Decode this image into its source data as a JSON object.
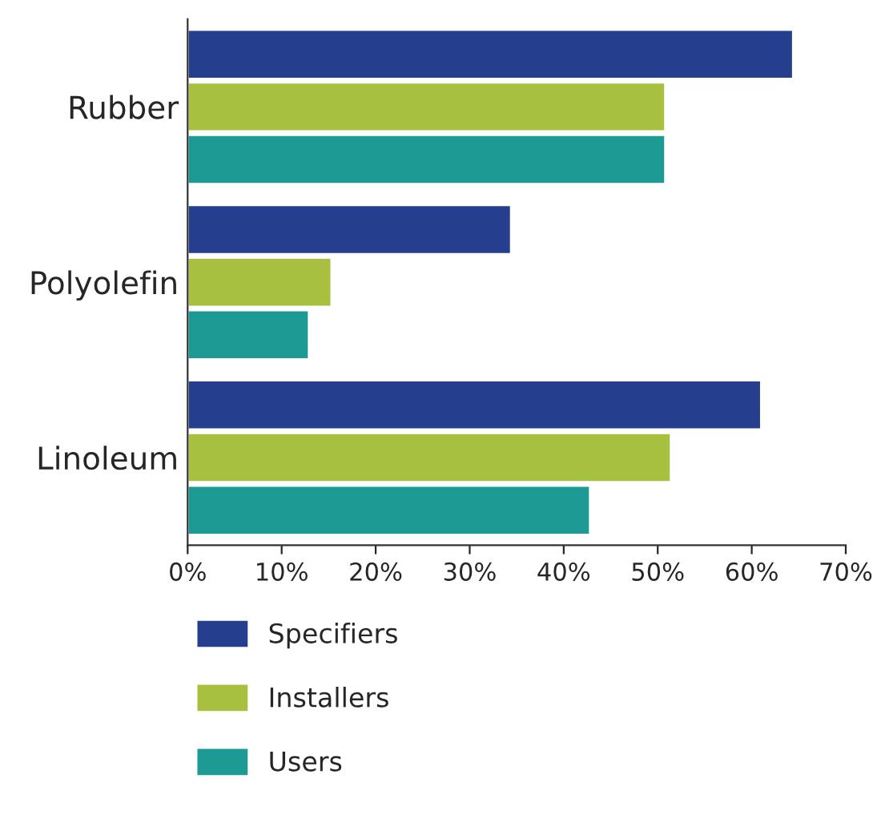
{
  "chart_data": {
    "type": "bar",
    "orientation": "horizontal",
    "categories": [
      "Rubber",
      "Polyolefin",
      "Linoleum"
    ],
    "series": [
      {
        "name": "Specifiers",
        "color": "#253f8e",
        "values": [
          64.4,
          34.4,
          61
        ]
      },
      {
        "name": "Installers",
        "color": "#a8c03f",
        "values": [
          50.8,
          15.3,
          51.4
        ]
      },
      {
        "name": "Users",
        "color": "#1e9a94",
        "values": [
          50.8,
          12.9,
          42.8
        ]
      }
    ],
    "xlim": [
      0,
      70
    ],
    "xticks": [
      {
        "value": 0,
        "label": "0%"
      },
      {
        "value": 10,
        "label": "10%"
      },
      {
        "value": 20,
        "label": "20%"
      },
      {
        "value": 30,
        "label": "30%"
      },
      {
        "value": 40,
        "label": "40%"
      },
      {
        "value": 50,
        "label": "50%"
      },
      {
        "value": 60,
        "label": "60%"
      },
      {
        "value": 70,
        "label": "70%"
      }
    ],
    "grid": false,
    "legend": "bottom"
  }
}
